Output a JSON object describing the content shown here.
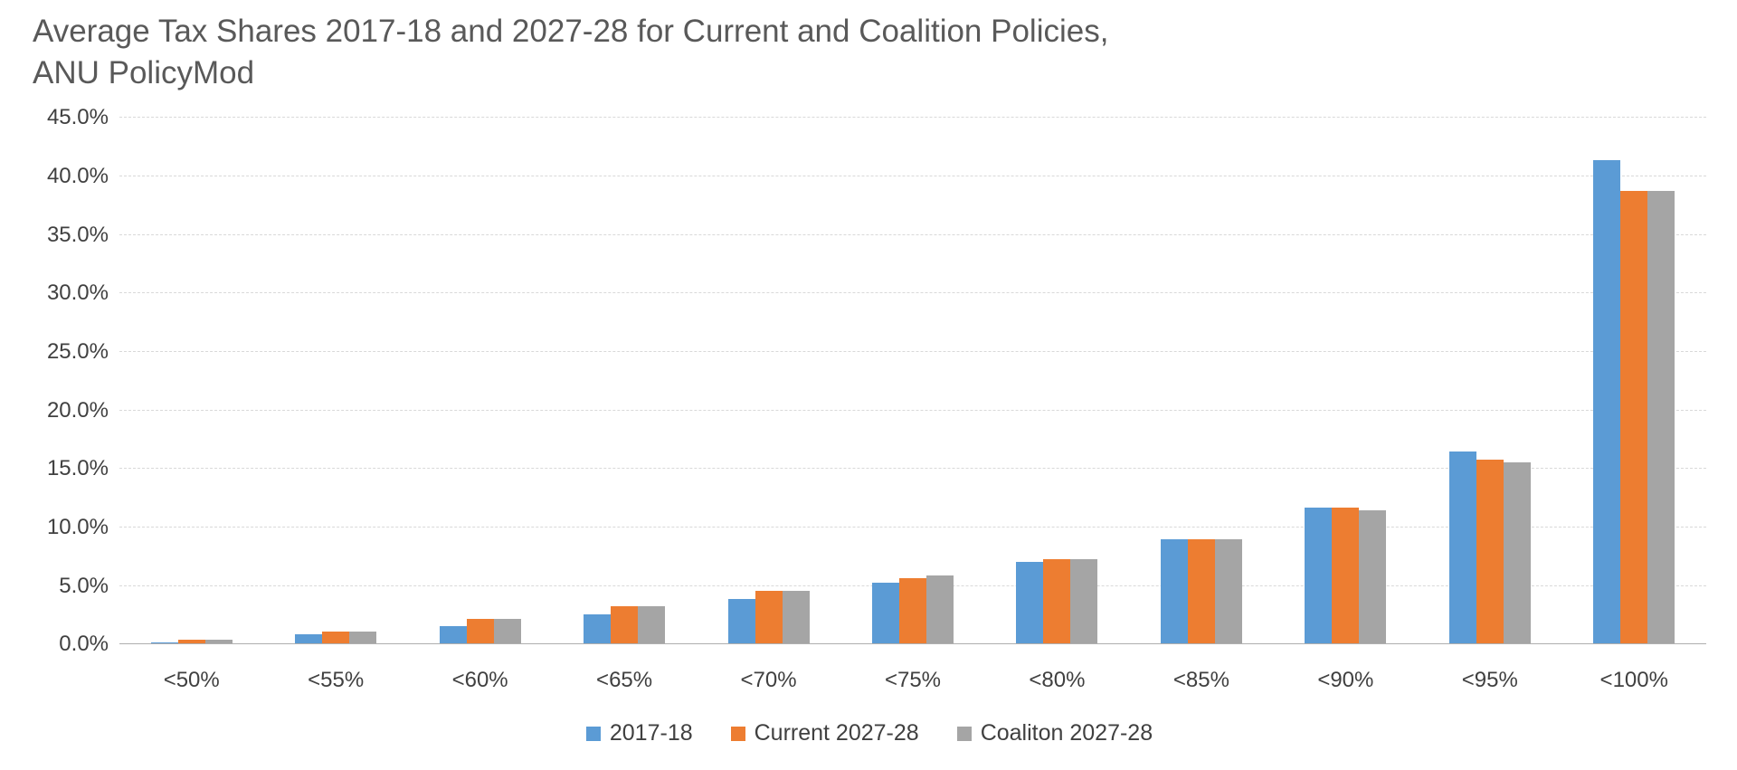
{
  "title": {
    "line1": "Average Tax Shares 2017-18 and 2027-28 for Current and Coalition Policies,",
    "line2": "ANU PolicyMod"
  },
  "chart_data": {
    "type": "bar",
    "title": "Average Tax Shares 2017-18 and 2027-28 for Current and Coalition Policies, ANU PolicyMod",
    "categories": [
      "<50%",
      "<55%",
      "<60%",
      "<65%",
      "<70%",
      "<75%",
      "<80%",
      "<85%",
      "<90%",
      "<95%",
      "<100%"
    ],
    "series": [
      {
        "name": "2017-18",
        "color": "#5B9BD5",
        "values": [
          0.2,
          0.9,
          1.6,
          2.6,
          3.9,
          5.3,
          7.1,
          9.0,
          11.7,
          16.5,
          41.4
        ]
      },
      {
        "name": "Current 2027-28",
        "color": "#ED7D31",
        "values": [
          0.4,
          1.1,
          2.2,
          3.3,
          4.6,
          5.7,
          7.3,
          9.0,
          11.7,
          15.8,
          38.8
        ]
      },
      {
        "name": "Coaliton 2027-28",
        "color": "#A5A5A5",
        "values": [
          0.4,
          1.1,
          2.2,
          3.3,
          4.6,
          5.9,
          7.3,
          9.0,
          11.5,
          15.6,
          38.8
        ]
      }
    ],
    "xlabel": "",
    "ylabel": "",
    "ylim": [
      0,
      45
    ],
    "ytick_step": 5,
    "ytick_labels": [
      "0.0%",
      "5.0%",
      "10.0%",
      "15.0%",
      "20.0%",
      "25.0%",
      "30.0%",
      "35.0%",
      "40.0%",
      "45.0%"
    ],
    "grid": "horizontal-dashed",
    "legend_position": "bottom"
  }
}
